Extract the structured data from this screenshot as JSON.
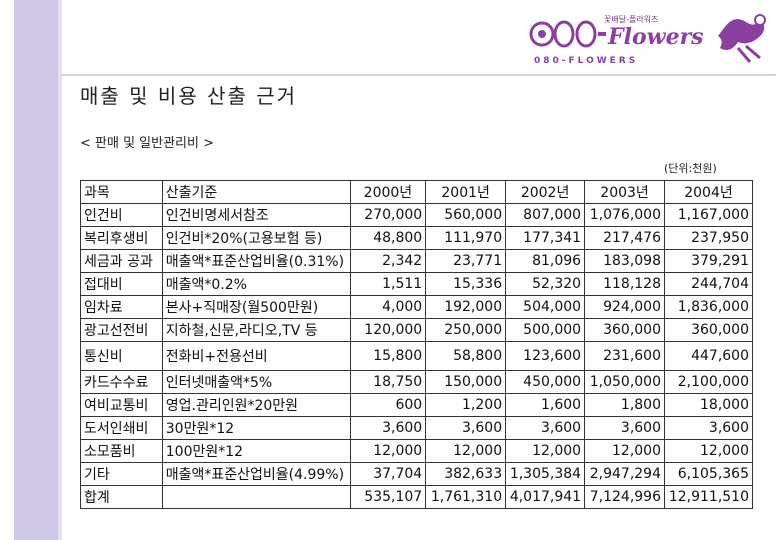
{
  "logo": {
    "tagline": "꽃배달-플라워즈",
    "code": "080-",
    "brand": "Flowers",
    "subline": "080-FLOWERS"
  },
  "page_title": "매출 및 비용 산출 근거",
  "section_title": "< 판매 및 일반관리비 >",
  "unit_note": "(단위:천원)",
  "table": {
    "headers": [
      "과목",
      "산출기준",
      "2000년",
      "2001년",
      "2002년",
      "2003년",
      "2004년"
    ],
    "rows": [
      {
        "item": "인건비",
        "basis": "인건비명세서참조",
        "values": [
          "270,000",
          "560,000",
          "807,000",
          "1,076,000",
          "1,167,000"
        ]
      },
      {
        "item": "복리후생비",
        "basis": "인건비*20%(고용보험 등)",
        "values": [
          "48,800",
          "111,970",
          "177,341",
          "217,476",
          "237,950"
        ]
      },
      {
        "item": "세금과 공과",
        "basis": "매출액*표준산업비율(0.31%)",
        "values": [
          "2,342",
          "23,771",
          "81,096",
          "183,098",
          "379,291"
        ]
      },
      {
        "item": "접대비",
        "basis": "매출액*0.2%",
        "values": [
          "1,511",
          "15,336",
          "52,320",
          "118,128",
          "244,704"
        ]
      },
      {
        "item": "임차료",
        "basis": "본사+직매장(월500만원)",
        "values": [
          "4,000",
          "192,000",
          "504,000",
          "924,000",
          "1,836,000"
        ]
      },
      {
        "item": "광고선전비",
        "basis": "지하철,신문,라디오,TV 등",
        "values": [
          "120,000",
          "250,000",
          "500,000",
          "360,000",
          "360,000"
        ]
      },
      {
        "item": "통신비",
        "basis": "전화비+전용선비",
        "values": [
          "15,800",
          "58,800",
          "123,600",
          "231,600",
          "447,600"
        ]
      },
      {
        "item": "카드수수료",
        "basis": "인터넷매출액*5%",
        "values": [
          "18,750",
          "150,000",
          "450,000",
          "1,050,000",
          "2,100,000"
        ]
      },
      {
        "item": "여비교통비",
        "basis": "영업.관리인원*20만원",
        "values": [
          "600",
          "1,200",
          "1,600",
          "1,800",
          "18,000"
        ]
      },
      {
        "item": "도서인쇄비",
        "basis": "30만원*12",
        "values": [
          "3,600",
          "3,600",
          "3,600",
          "3,600",
          "3,600"
        ]
      },
      {
        "item": "소모품비",
        "basis": "100만원*12",
        "values": [
          "12,000",
          "12,000",
          "12,000",
          "12,000",
          "12,000"
        ]
      },
      {
        "item": "기타",
        "basis": "매출액*표준산업비율(4.99%)",
        "values": [
          "37,704",
          "382,633",
          "1,305,384",
          "2,947,294",
          "6,105,365"
        ]
      },
      {
        "item": "합계",
        "basis": "",
        "values": [
          "535,107",
          "1,761,310",
          "4,017,941",
          "7,124,996",
          "12,911,510"
        ]
      }
    ]
  },
  "colors": {
    "brand_purple": "#8b3fa0",
    "side_band": "#cfc6e3"
  }
}
